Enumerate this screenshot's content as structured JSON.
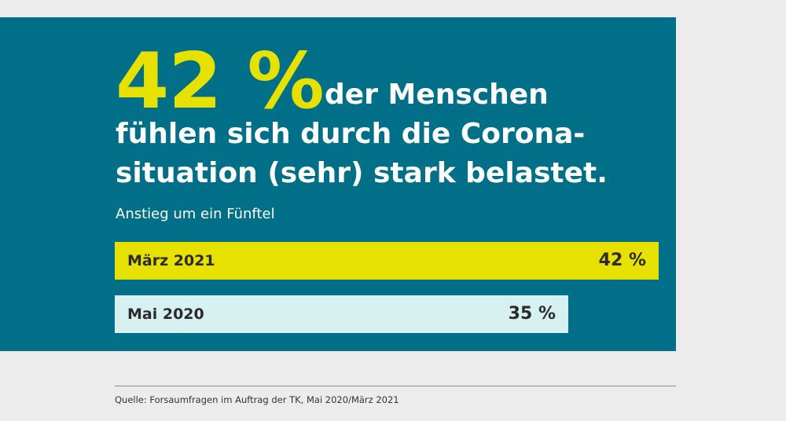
{
  "headline": {
    "big_number": "42 %",
    "line1": "der Menschen",
    "line2": "fühlen sich durch die Corona-",
    "line3": "situation (sehr) stark belastet."
  },
  "subtitle": "Anstieg um ein Fünftel",
  "source": "Quelle: Forsaumfragen im Auftrag der TK, Mai 2020/März 2021",
  "colors": {
    "panel": "#006f87",
    "accent_yellow": "#e6e100",
    "bar_pale": "#d7f0f0",
    "page_bg": "#ececec"
  },
  "chart_data": {
    "type": "bar",
    "orientation": "horizontal",
    "categories": [
      "März 2021",
      "Mai 2020"
    ],
    "values": [
      42,
      35
    ],
    "value_labels": [
      "42 %",
      "35 %"
    ],
    "xlim": [
      0,
      42
    ],
    "colors": [
      "#e6e100",
      "#d7f0f0"
    ],
    "title": "",
    "xlabel": "",
    "ylabel": ""
  }
}
